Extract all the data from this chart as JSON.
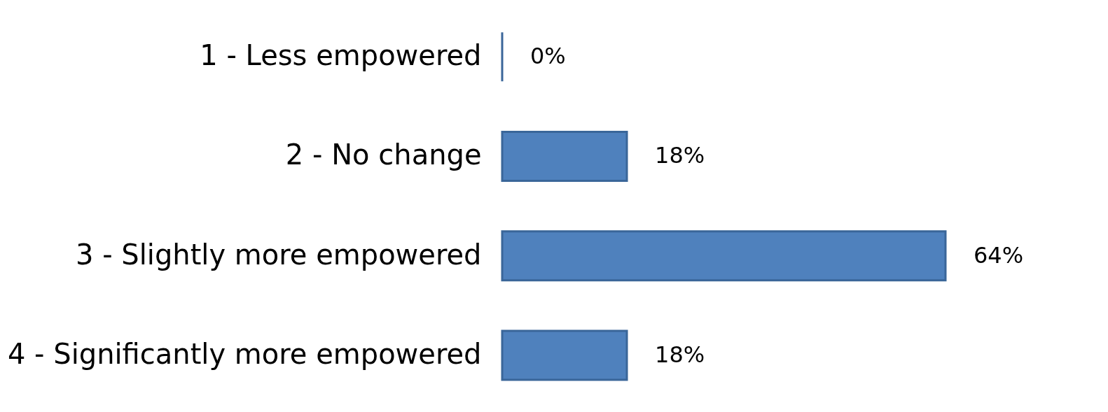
{
  "chart_data": {
    "type": "bar",
    "orientation": "horizontal",
    "data_labels": true,
    "categories": [
      "1 - Less empowered",
      "2 - No change",
      "3 - Slightly more empowered",
      "4 - Significantly more empowered"
    ],
    "values": [
      0,
      18,
      64,
      18
    ],
    "value_labels": [
      "0%",
      "18%",
      "64%",
      "18%"
    ],
    "colors": [
      "#3a6699",
      "#4f81bd",
      "#4f81bd",
      "#4f81bd"
    ]
  }
}
